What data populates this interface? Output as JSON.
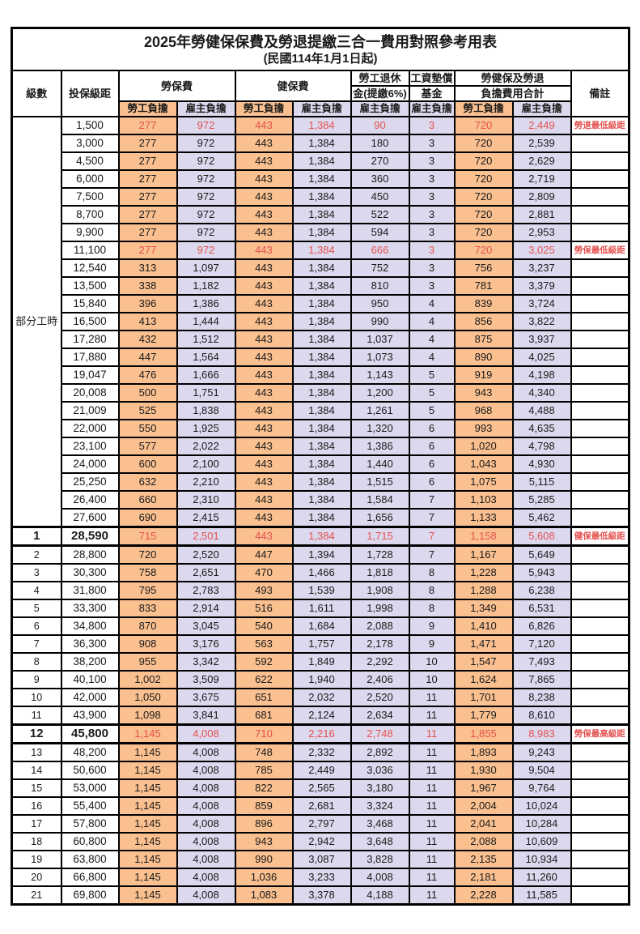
{
  "title": "2025年勞健保保費及勞退提繳三合一費用對照參考用表",
  "subtitle": "(民國114年1月1日起)",
  "header": {
    "level": "級數",
    "bracket": "投保級距",
    "labor_insurance": "勞保費",
    "health_insurance": "健保費",
    "pension_line1": "勞工退休",
    "pension_line2": "金(提繳6%)",
    "wage_fund_line1": "工資墊償",
    "wage_fund_line2": "基金",
    "total_line1": "勞健保及勞退",
    "total_line2": "負擔費用合計",
    "remark": "備註",
    "employee_share": "勞工負擔",
    "employer_share": "雇主負擔"
  },
  "part_time_label": "部分工時",
  "colors": {
    "employee_bg": "#FAC090",
    "employer_bg": "#DCD9EE",
    "highlight_red": "#E4514F",
    "border": "#000000"
  },
  "rows": [
    {
      "level": "",
      "bracket": "1,500",
      "values": [
        "277",
        "972",
        "443",
        "1,384",
        "90",
        "3",
        "720",
        "2,449"
      ],
      "remark": "勞退最低級距",
      "highlight": true,
      "section": false
    },
    {
      "level": "",
      "bracket": "3,000",
      "values": [
        "277",
        "972",
        "443",
        "1,384",
        "180",
        "3",
        "720",
        "2,539"
      ],
      "remark": "",
      "highlight": false,
      "section": false
    },
    {
      "level": "",
      "bracket": "4,500",
      "values": [
        "277",
        "972",
        "443",
        "1,384",
        "270",
        "3",
        "720",
        "2,629"
      ],
      "remark": "",
      "highlight": false,
      "section": false
    },
    {
      "level": "",
      "bracket": "6,000",
      "values": [
        "277",
        "972",
        "443",
        "1,384",
        "360",
        "3",
        "720",
        "2,719"
      ],
      "remark": "",
      "highlight": false,
      "section": false
    },
    {
      "level": "",
      "bracket": "7,500",
      "values": [
        "277",
        "972",
        "443",
        "1,384",
        "450",
        "3",
        "720",
        "2,809"
      ],
      "remark": "",
      "highlight": false,
      "section": false
    },
    {
      "level": "",
      "bracket": "8,700",
      "values": [
        "277",
        "972",
        "443",
        "1,384",
        "522",
        "3",
        "720",
        "2,881"
      ],
      "remark": "",
      "highlight": false,
      "section": false
    },
    {
      "level": "",
      "bracket": "9,900",
      "values": [
        "277",
        "972",
        "443",
        "1,384",
        "594",
        "3",
        "720",
        "2,953"
      ],
      "remark": "",
      "highlight": false,
      "section": false
    },
    {
      "level": "",
      "bracket": "11,100",
      "values": [
        "277",
        "972",
        "443",
        "1,384",
        "666",
        "3",
        "720",
        "3,025"
      ],
      "remark": "勞保最低級距",
      "highlight": true,
      "section": false
    },
    {
      "level": "",
      "bracket": "12,540",
      "values": [
        "313",
        "1,097",
        "443",
        "1,384",
        "752",
        "3",
        "756",
        "3,237"
      ],
      "remark": "",
      "highlight": false,
      "section": false
    },
    {
      "level": "",
      "bracket": "13,500",
      "values": [
        "338",
        "1,182",
        "443",
        "1,384",
        "810",
        "3",
        "781",
        "3,379"
      ],
      "remark": "",
      "highlight": false,
      "section": false
    },
    {
      "level": "",
      "bracket": "15,840",
      "values": [
        "396",
        "1,386",
        "443",
        "1,384",
        "950",
        "4",
        "839",
        "3,724"
      ],
      "remark": "",
      "highlight": false,
      "section": false
    },
    {
      "level": "",
      "bracket": "16,500",
      "values": [
        "413",
        "1,444",
        "443",
        "1,384",
        "990",
        "4",
        "856",
        "3,822"
      ],
      "remark": "",
      "highlight": false,
      "section": false
    },
    {
      "level": "",
      "bracket": "17,280",
      "values": [
        "432",
        "1,512",
        "443",
        "1,384",
        "1,037",
        "4",
        "875",
        "3,937"
      ],
      "remark": "",
      "highlight": false,
      "section": false
    },
    {
      "level": "",
      "bracket": "17,880",
      "values": [
        "447",
        "1,564",
        "443",
        "1,384",
        "1,073",
        "4",
        "890",
        "4,025"
      ],
      "remark": "",
      "highlight": false,
      "section": false
    },
    {
      "level": "",
      "bracket": "19,047",
      "values": [
        "476",
        "1,666",
        "443",
        "1,384",
        "1,143",
        "5",
        "919",
        "4,198"
      ],
      "remark": "",
      "highlight": false,
      "section": false
    },
    {
      "level": "",
      "bracket": "20,008",
      "values": [
        "500",
        "1,751",
        "443",
        "1,384",
        "1,200",
        "5",
        "943",
        "4,340"
      ],
      "remark": "",
      "highlight": false,
      "section": false
    },
    {
      "level": "",
      "bracket": "21,009",
      "values": [
        "525",
        "1,838",
        "443",
        "1,384",
        "1,261",
        "5",
        "968",
        "4,488"
      ],
      "remark": "",
      "highlight": false,
      "section": false
    },
    {
      "level": "",
      "bracket": "22,000",
      "values": [
        "550",
        "1,925",
        "443",
        "1,384",
        "1,320",
        "6",
        "993",
        "4,635"
      ],
      "remark": "",
      "highlight": false,
      "section": false
    },
    {
      "level": "",
      "bracket": "23,100",
      "values": [
        "577",
        "2,022",
        "443",
        "1,384",
        "1,386",
        "6",
        "1,020",
        "4,798"
      ],
      "remark": "",
      "highlight": false,
      "section": false
    },
    {
      "level": "",
      "bracket": "24,000",
      "values": [
        "600",
        "2,100",
        "443",
        "1,384",
        "1,440",
        "6",
        "1,043",
        "4,930"
      ],
      "remark": "",
      "highlight": false,
      "section": false
    },
    {
      "level": "",
      "bracket": "25,250",
      "values": [
        "632",
        "2,210",
        "443",
        "1,384",
        "1,515",
        "6",
        "1,075",
        "5,115"
      ],
      "remark": "",
      "highlight": false,
      "section": false
    },
    {
      "level": "",
      "bracket": "26,400",
      "values": [
        "660",
        "2,310",
        "443",
        "1,384",
        "1,584",
        "7",
        "1,103",
        "5,285"
      ],
      "remark": "",
      "highlight": false,
      "section": false
    },
    {
      "level": "",
      "bracket": "27,600",
      "values": [
        "690",
        "2,415",
        "443",
        "1,384",
        "1,656",
        "7",
        "1,133",
        "5,462"
      ],
      "remark": "",
      "highlight": false,
      "section": false
    },
    {
      "level": "1",
      "bracket": "28,590",
      "values": [
        "715",
        "2,501",
        "443",
        "1,384",
        "1,715",
        "7",
        "1,158",
        "5,608"
      ],
      "remark": "健保最低級距",
      "highlight": true,
      "section": true
    },
    {
      "level": "2",
      "bracket": "28,800",
      "values": [
        "720",
        "2,520",
        "447",
        "1,394",
        "1,728",
        "7",
        "1,167",
        "5,649"
      ],
      "remark": "",
      "highlight": false,
      "section": false
    },
    {
      "level": "3",
      "bracket": "30,300",
      "values": [
        "758",
        "2,651",
        "470",
        "1,466",
        "1,818",
        "8",
        "1,228",
        "5,943"
      ],
      "remark": "",
      "highlight": false,
      "section": false
    },
    {
      "level": "4",
      "bracket": "31,800",
      "values": [
        "795",
        "2,783",
        "493",
        "1,539",
        "1,908",
        "8",
        "1,288",
        "6,238"
      ],
      "remark": "",
      "highlight": false,
      "section": false
    },
    {
      "level": "5",
      "bracket": "33,300",
      "values": [
        "833",
        "2,914",
        "516",
        "1,611",
        "1,998",
        "8",
        "1,349",
        "6,531"
      ],
      "remark": "",
      "highlight": false,
      "section": false
    },
    {
      "level": "6",
      "bracket": "34,800",
      "values": [
        "870",
        "3,045",
        "540",
        "1,684",
        "2,088",
        "9",
        "1,410",
        "6,826"
      ],
      "remark": "",
      "highlight": false,
      "section": false
    },
    {
      "level": "7",
      "bracket": "36,300",
      "values": [
        "908",
        "3,176",
        "563",
        "1,757",
        "2,178",
        "9",
        "1,471",
        "7,120"
      ],
      "remark": "",
      "highlight": false,
      "section": false
    },
    {
      "level": "8",
      "bracket": "38,200",
      "values": [
        "955",
        "3,342",
        "592",
        "1,849",
        "2,292",
        "10",
        "1,547",
        "7,493"
      ],
      "remark": "",
      "highlight": false,
      "section": false
    },
    {
      "level": "9",
      "bracket": "40,100",
      "values": [
        "1,002",
        "3,509",
        "622",
        "1,940",
        "2,406",
        "10",
        "1,624",
        "7,865"
      ],
      "remark": "",
      "highlight": false,
      "section": false
    },
    {
      "level": "10",
      "bracket": "42,000",
      "values": [
        "1,050",
        "3,675",
        "651",
        "2,032",
        "2,520",
        "11",
        "1,701",
        "8,238"
      ],
      "remark": "",
      "highlight": false,
      "section": false
    },
    {
      "level": "11",
      "bracket": "43,900",
      "values": [
        "1,098",
        "3,841",
        "681",
        "2,124",
        "2,634",
        "11",
        "1,779",
        "8,610"
      ],
      "remark": "",
      "highlight": false,
      "section": false
    },
    {
      "level": "12",
      "bracket": "45,800",
      "values": [
        "1,145",
        "4,008",
        "710",
        "2,216",
        "2,748",
        "11",
        "1,855",
        "8,983"
      ],
      "remark": "勞保最高級距",
      "highlight": true,
      "section": true
    },
    {
      "level": "13",
      "bracket": "48,200",
      "values": [
        "1,145",
        "4,008",
        "748",
        "2,332",
        "2,892",
        "11",
        "1,893",
        "9,243"
      ],
      "remark": "",
      "highlight": false,
      "section": false
    },
    {
      "level": "14",
      "bracket": "50,600",
      "values": [
        "1,145",
        "4,008",
        "785",
        "2,449",
        "3,036",
        "11",
        "1,930",
        "9,504"
      ],
      "remark": "",
      "highlight": false,
      "section": false
    },
    {
      "level": "15",
      "bracket": "53,000",
      "values": [
        "1,145",
        "4,008",
        "822",
        "2,565",
        "3,180",
        "11",
        "1,967",
        "9,764"
      ],
      "remark": "",
      "highlight": false,
      "section": false
    },
    {
      "level": "16",
      "bracket": "55,400",
      "values": [
        "1,145",
        "4,008",
        "859",
        "2,681",
        "3,324",
        "11",
        "2,004",
        "10,024"
      ],
      "remark": "",
      "highlight": false,
      "section": false
    },
    {
      "level": "17",
      "bracket": "57,800",
      "values": [
        "1,145",
        "4,008",
        "896",
        "2,797",
        "3,468",
        "11",
        "2,041",
        "10,284"
      ],
      "remark": "",
      "highlight": false,
      "section": false
    },
    {
      "level": "18",
      "bracket": "60,800",
      "values": [
        "1,145",
        "4,008",
        "943",
        "2,942",
        "3,648",
        "11",
        "2,088",
        "10,609"
      ],
      "remark": "",
      "highlight": false,
      "section": false
    },
    {
      "level": "19",
      "bracket": "63,800",
      "values": [
        "1,145",
        "4,008",
        "990",
        "3,087",
        "3,828",
        "11",
        "2,135",
        "10,934"
      ],
      "remark": "",
      "highlight": false,
      "section": false
    },
    {
      "level": "20",
      "bracket": "66,800",
      "values": [
        "1,145",
        "4,008",
        "1,036",
        "3,233",
        "4,008",
        "11",
        "2,181",
        "11,260"
      ],
      "remark": "",
      "highlight": false,
      "section": false
    },
    {
      "level": "21",
      "bracket": "69,800",
      "values": [
        "1,145",
        "4,008",
        "1,083",
        "3,378",
        "4,188",
        "11",
        "2,228",
        "11,585"
      ],
      "remark": "",
      "highlight": false,
      "section": false
    }
  ]
}
